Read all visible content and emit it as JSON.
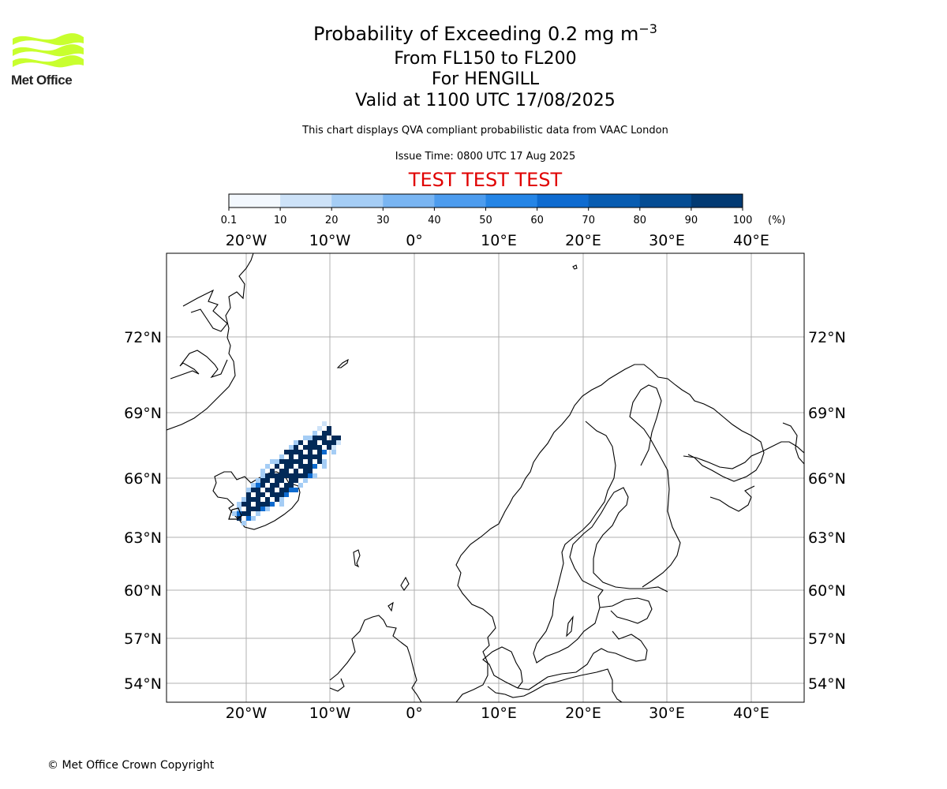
{
  "header": {
    "title_prefix": "Probability of Exceeding 0.2 mg m",
    "title_exp": "−3",
    "level_range": "From FL150 to FL200",
    "location": "For HENGILL",
    "valid_time": "Valid at 1100 UTC 17/08/2025",
    "note": "This chart displays QVA compliant probabilistic data from VAAC London",
    "issue_time": "Issue Time: 0800 UTC 17 Aug 2025",
    "test_banner": "TEST TEST TEST"
  },
  "logo": {
    "text": "Met Office",
    "color": "#c8ff2e"
  },
  "colorbar": {
    "ticks": [
      "0.1",
      "10",
      "20",
      "30",
      "40",
      "50",
      "60",
      "70",
      "80",
      "90",
      "100"
    ],
    "unit": "(%)",
    "colors": [
      "#f3f8fe",
      "#cde2f8",
      "#a5cdf5",
      "#79b5f2",
      "#4d9cee",
      "#2585e6",
      "#0e6bd0",
      "#085cb1",
      "#044c93",
      "#023a73",
      "#022a58"
    ]
  },
  "map": {
    "lon_labels": [
      "20°W",
      "10°W",
      "0°",
      "10°E",
      "20°E",
      "30°E",
      "40°E"
    ],
    "lat_labels": [
      "72°N",
      "69°N",
      "66°N",
      "63°N",
      "60°N",
      "57°N",
      "54°N"
    ],
    "plume_color": "#022a58"
  },
  "footer": {
    "copyright": "© Met Office Crown Copyright"
  }
}
